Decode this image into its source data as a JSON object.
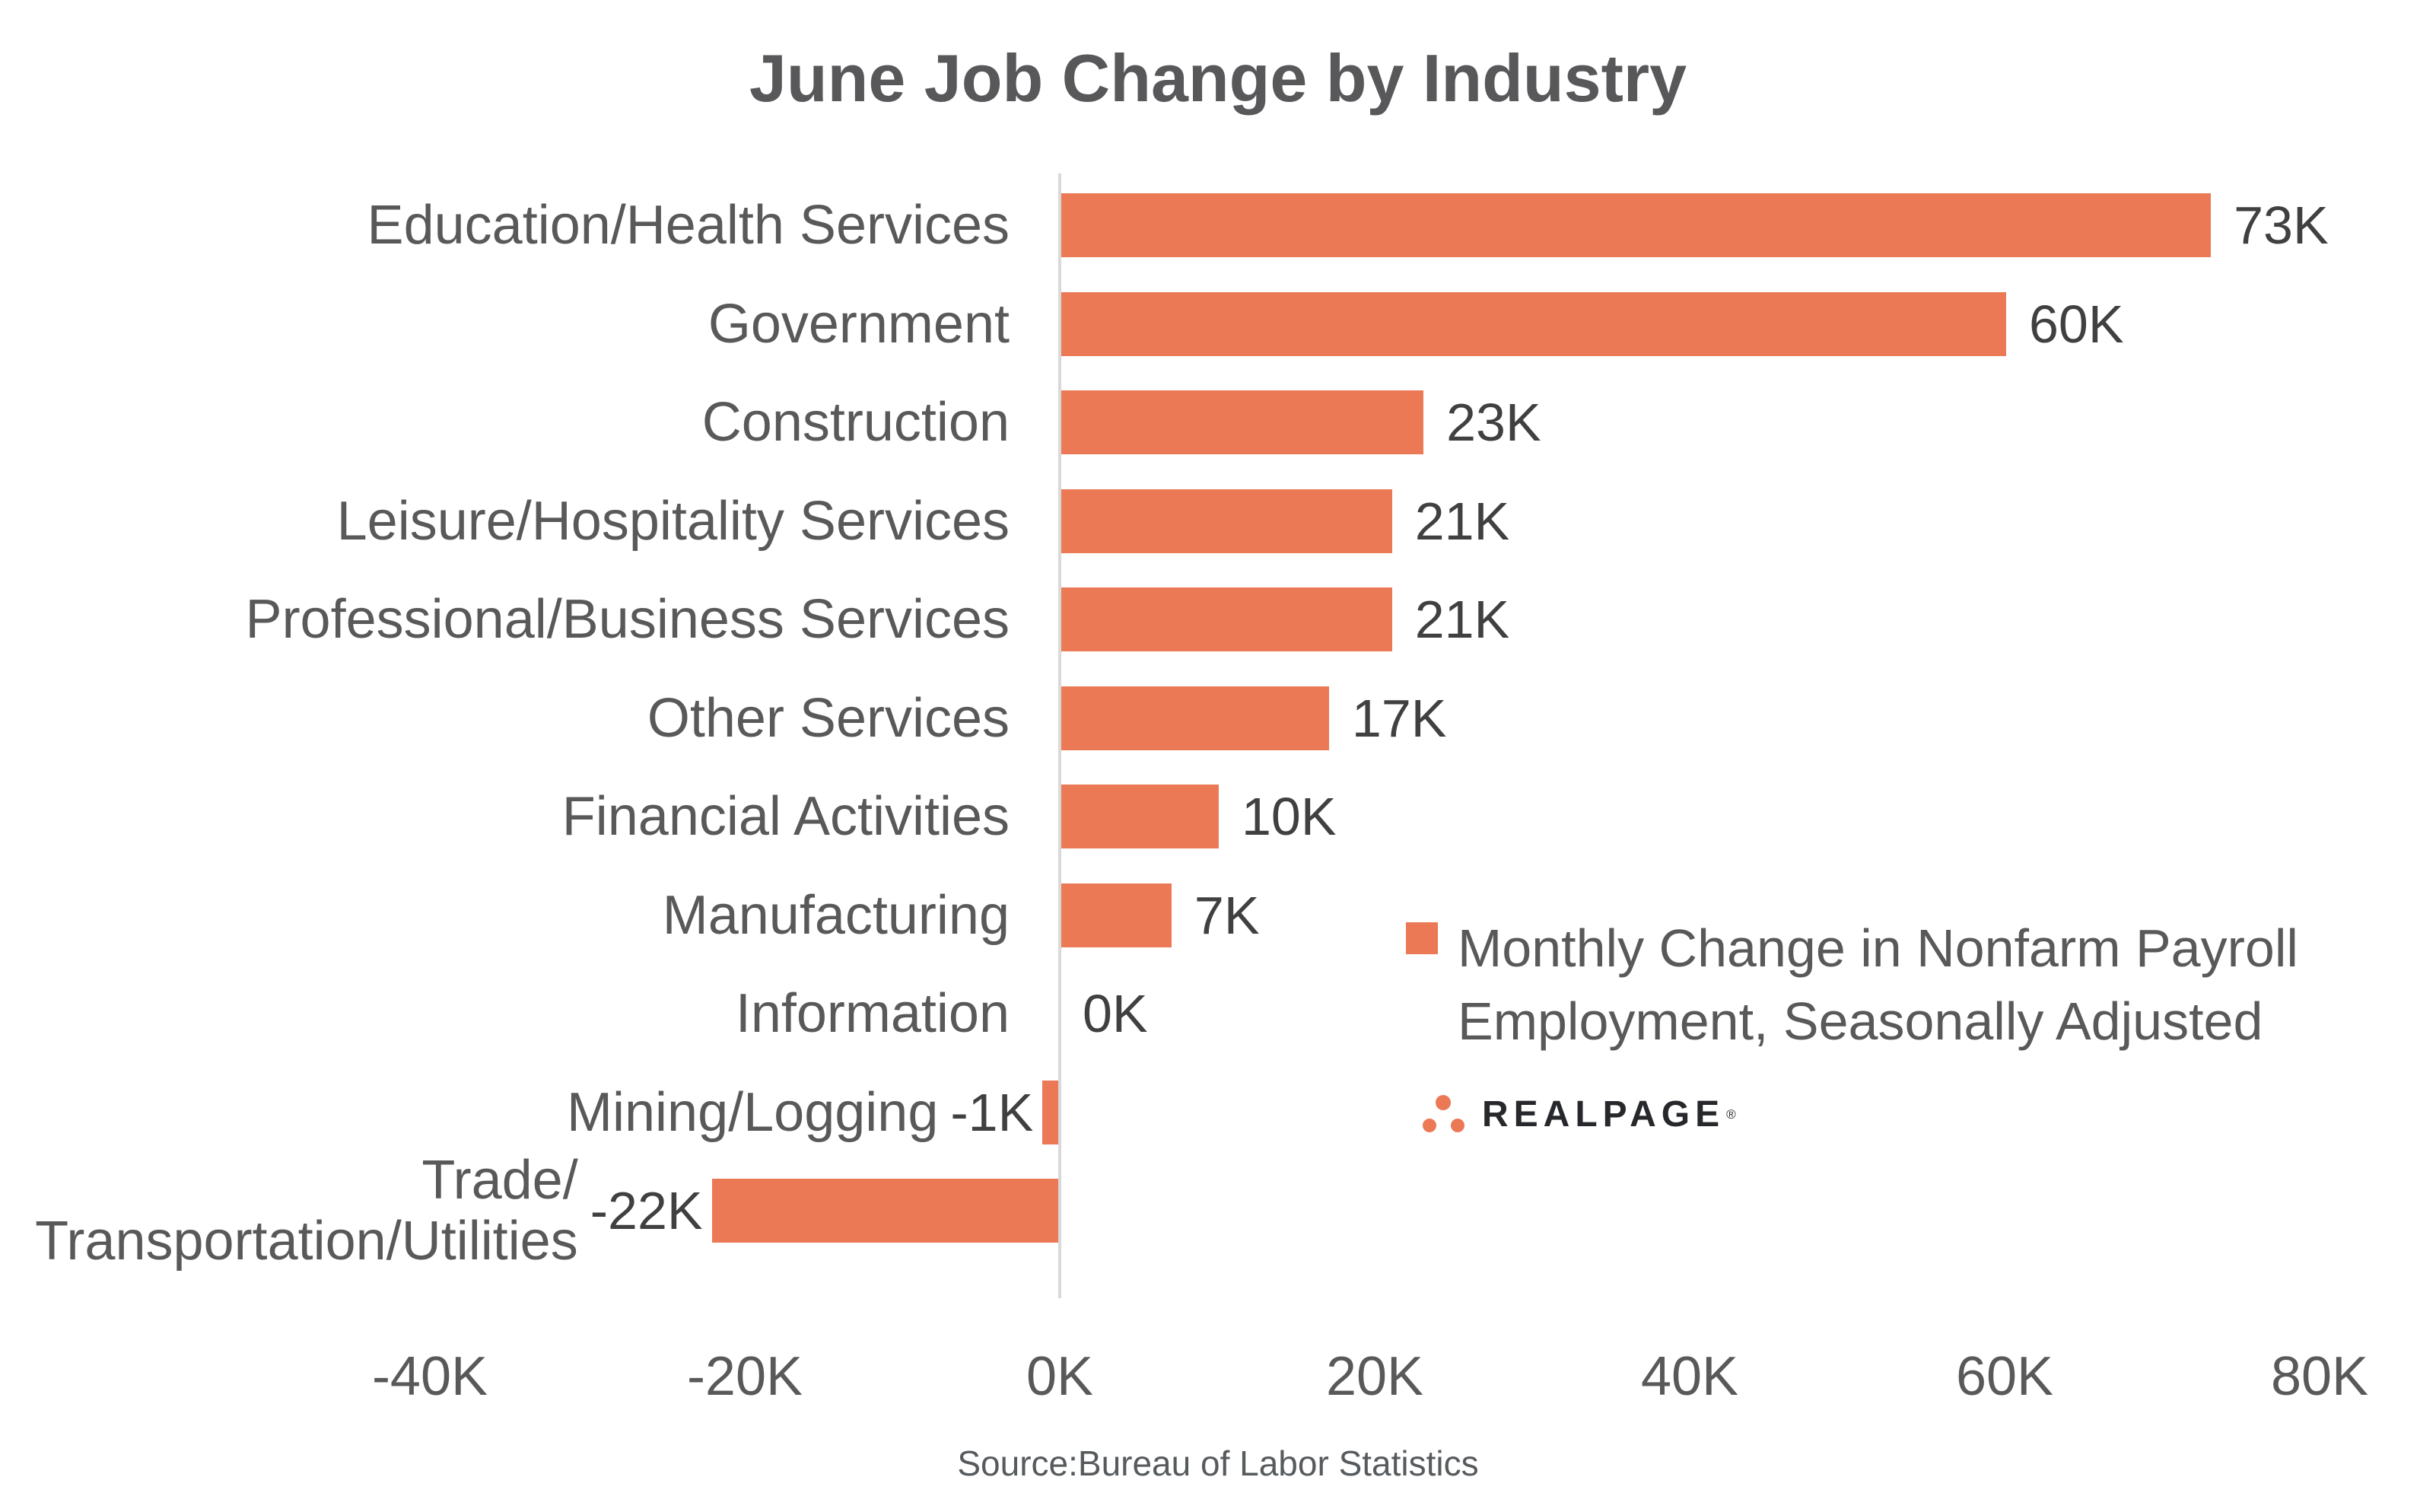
{
  "title": "June Job Change by Industry",
  "source_note": "Source:Bureau of Labor Statistics",
  "legend": {
    "label": "Monthly Change in Nonfarm Payroll\nEmployment, Seasonally Adjusted",
    "swatch_color": "#ec7956"
  },
  "logo": {
    "text": "REALPAGE",
    "registered_mark": "®",
    "dots_color": "#ec7956",
    "text_color": "#26282b"
  },
  "colors": {
    "bar": "#ec7956",
    "title_text": "#58585a",
    "category_text": "#595959",
    "value_text": "#404040",
    "tick_text": "#595959",
    "axis_line": "#d9d9d9",
    "source_text": "#575b5e"
  },
  "chart_data": {
    "type": "bar",
    "orientation": "horizontal",
    "title": "June Job Change by Industry",
    "xlabel": "",
    "ylabel": "",
    "units": "thousands of jobs (K)",
    "grid": false,
    "legend_position": "center-right",
    "legend_entries": [
      "Monthly Change in Nonfarm Payroll Employment, Seasonally Adjusted"
    ],
    "categories": [
      "Education/Health Services",
      "Government",
      "Construction",
      "Leisure/Hospitality Services",
      "Professional/Business Services",
      "Other Services",
      "Financial Activities",
      "Manufacturing",
      "Information",
      "Mining/Logging",
      "Trade/\nTransportation/Utilities"
    ],
    "values": [
      73,
      60,
      23,
      21,
      21,
      17,
      10,
      7,
      0,
      -1,
      -22
    ],
    "value_labels": [
      "73K",
      "60K",
      "23K",
      "21K",
      "21K",
      "17K",
      "10K",
      "7K",
      "0K",
      "-1K",
      "-22K"
    ],
    "xlim": [
      -40,
      80
    ],
    "xticks": [
      -40,
      -20,
      0,
      20,
      40,
      60,
      80
    ],
    "xtick_labels": [
      "-40K",
      "-20K",
      "0K",
      "20K",
      "40K",
      "60K",
      "80K"
    ]
  }
}
